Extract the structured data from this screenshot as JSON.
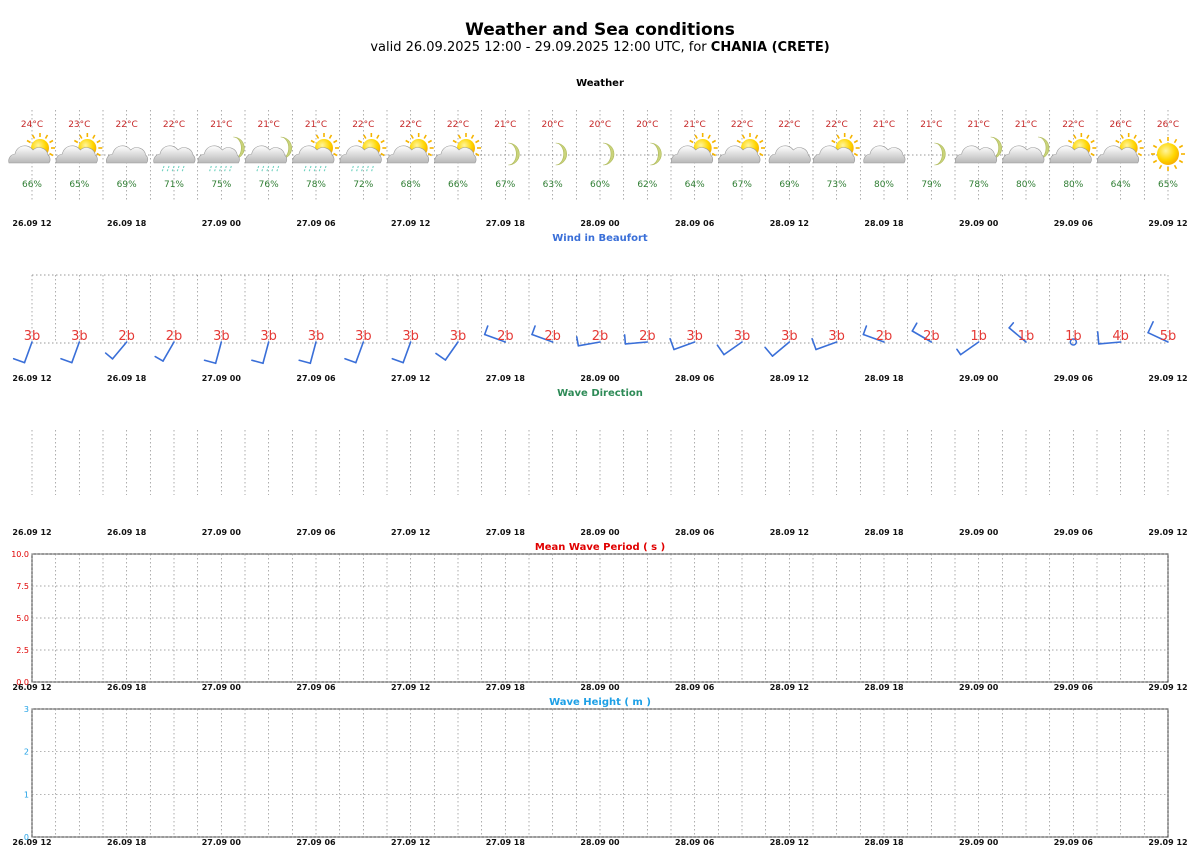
{
  "header": {
    "title": "Weather and Sea conditions",
    "subtitle_prefix": "valid 26.09.2025 12:00 - 29.09.2025 12:00 UTC, for ",
    "location": "CHANIA (CRETE)"
  },
  "colors": {
    "temperature": "#c62828",
    "humidity": "#2e7d32",
    "wind_title": "#3a6fd8",
    "wind_barb": "#3a6fd8",
    "beaufort": "#e53935",
    "wave_direction_title": "#2e8b57",
    "wave_period": "#e00000",
    "wave_height": "#1ea0e6"
  },
  "chart_data": [
    {
      "type": "table",
      "title": "Weather",
      "time_ticks": [
        "26.09 12",
        "26.09 18",
        "27.09 00",
        "27.09 06",
        "27.09 12",
        "27.09 18",
        "28.09 00",
        "28.09 06",
        "28.09 12",
        "28.09 18",
        "29.09 00",
        "29.09 06",
        "29.09 12"
      ],
      "temperature": [
        "24°C",
        "23°C",
        "22°C",
        "22°C",
        "21°C",
        "21°C",
        "21°C",
        "22°C",
        "22°C",
        "22°C",
        "21°C",
        "20°C",
        "20°C",
        "20°C",
        "21°C",
        "22°C",
        "22°C",
        "22°C",
        "21°C",
        "21°C",
        "21°C",
        "21°C",
        "22°C",
        "26°C",
        "26°C"
      ],
      "humidity": [
        "66%",
        "65%",
        "69%",
        "71%",
        "75%",
        "76%",
        "78%",
        "72%",
        "68%",
        "66%",
        "67%",
        "63%",
        "60%",
        "62%",
        "64%",
        "67%",
        "69%",
        "73%",
        "80%",
        "79%",
        "78%",
        "80%",
        "80%",
        "64%",
        "65%"
      ],
      "icons": [
        "sun-cloud-icon",
        "sun-cloud-icon",
        "cloud-icon",
        "cloud-rain-icon",
        "moon-cloud-rain-icon",
        "moon-cloud-rain-icon",
        "sun-cloud-rain-icon",
        "sun-cloud-rain-icon",
        "sun-cloud-icon",
        "sun-cloud-icon",
        "moon-icon",
        "moon-icon",
        "moon-icon",
        "moon-icon",
        "sun-cloud-icon",
        "sun-cloud-icon",
        "cloud-icon",
        "sun-cloud-icon",
        "cloud-icon",
        "moon-icon",
        "moon-cloud-icon",
        "moon-cloud-icon",
        "sun-cloud-icon",
        "sun-cloud-icon",
        "sun-icon"
      ]
    },
    {
      "type": "table",
      "title": "Wind in Beaufort",
      "time_ticks": [
        "26.09 12",
        "26.09 18",
        "27.09 00",
        "27.09 06",
        "27.09 12",
        "27.09 18",
        "28.09 00",
        "28.09 06",
        "28.09 12",
        "28.09 18",
        "29.09 00",
        "29.09 06",
        "29.09 12"
      ],
      "beaufort": [
        "3b",
        "3b",
        "2b",
        "2b",
        "3b",
        "3b",
        "3b",
        "3b",
        "3b",
        "3b",
        "2b",
        "2b",
        "2b",
        "2b",
        "3b",
        "3b",
        "3b",
        "3b",
        "2b",
        "2b",
        "1b",
        "1b",
        "1b",
        "4b",
        "5b"
      ],
      "direction_deg": [
        200,
        200,
        220,
        210,
        195,
        195,
        195,
        200,
        200,
        215,
        290,
        290,
        260,
        265,
        250,
        235,
        230,
        250,
        290,
        300,
        235,
        310,
        0,
        265,
        295
      ]
    },
    {
      "type": "table",
      "title": "Wave Direction",
      "time_ticks": [
        "26.09 12",
        "26.09 18",
        "27.09 00",
        "27.09 06",
        "27.09 12",
        "27.09 18",
        "28.09 00",
        "28.09 06",
        "28.09 12",
        "28.09 18",
        "29.09 00",
        "29.09 06",
        "29.09 12"
      ],
      "direction_deg": []
    },
    {
      "type": "line",
      "title": "Mean Wave Period ( s )",
      "x": [
        "26.09 12",
        "26.09 18",
        "27.09 00",
        "27.09 06",
        "27.09 12",
        "27.09 18",
        "28.09 00",
        "28.09 06",
        "28.09 12",
        "28.09 18",
        "29.09 00",
        "29.09 06",
        "29.09 12"
      ],
      "series": [],
      "ylim": [
        0,
        10
      ],
      "yticks": [
        "0.0",
        "2.5",
        "5.0",
        "7.5",
        "10.0"
      ],
      "grid": true
    },
    {
      "type": "line",
      "title": "Wave Height ( m )",
      "x": [
        "26.09 12",
        "26.09 18",
        "27.09 00",
        "27.09 06",
        "27.09 12",
        "27.09 18",
        "28.09 00",
        "28.09 06",
        "28.09 12",
        "28.09 18",
        "29.09 00",
        "29.09 06",
        "29.09 12"
      ],
      "series": [],
      "ylim": [
        0,
        3
      ],
      "yticks": [
        "0",
        "1",
        "2",
        "3"
      ],
      "grid": true
    }
  ]
}
